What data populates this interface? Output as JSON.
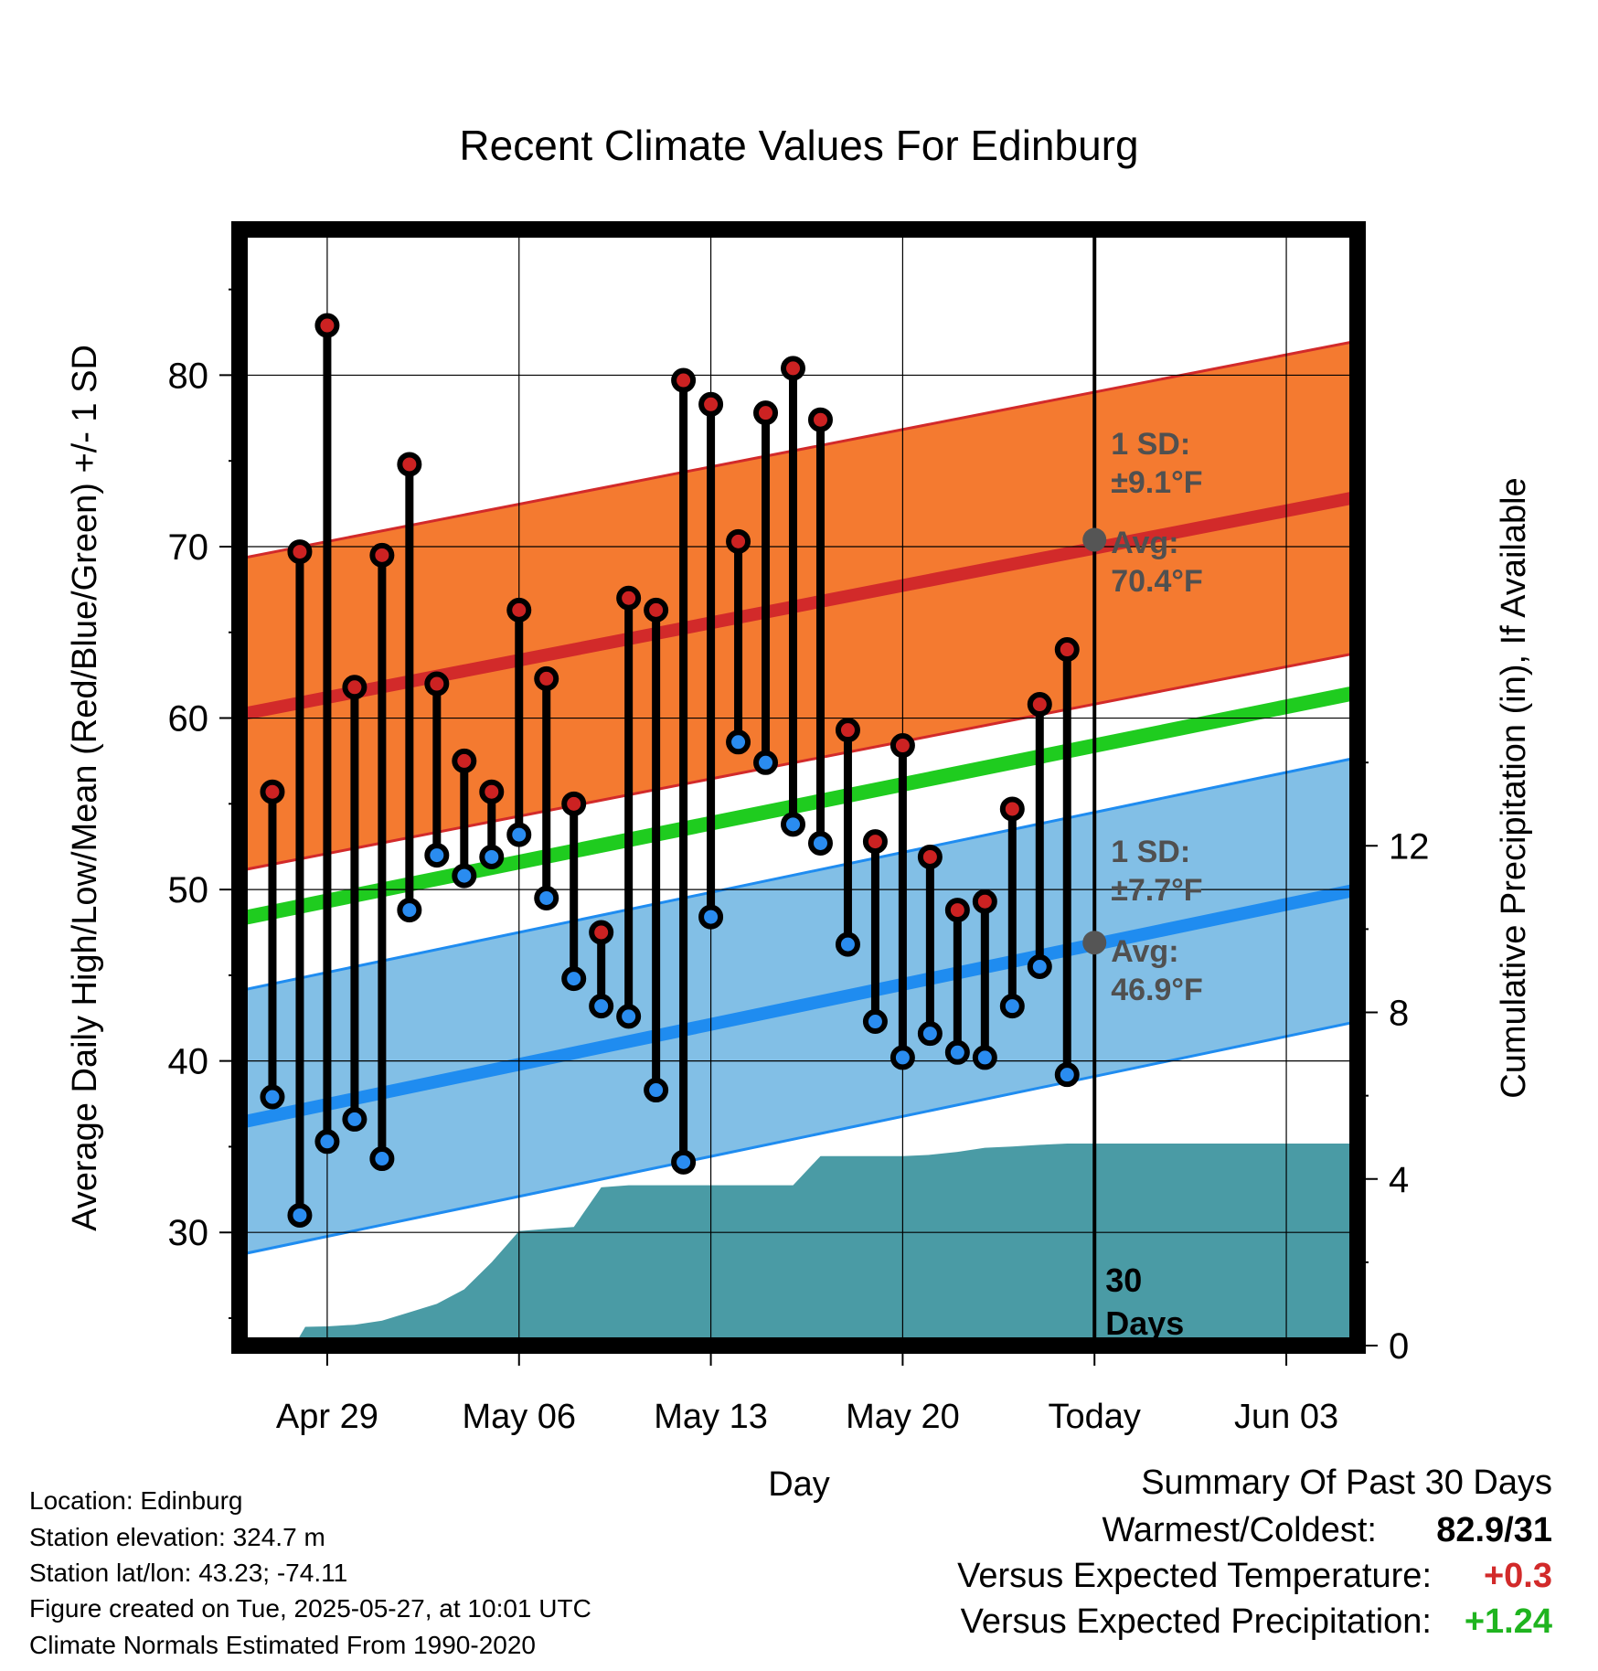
{
  "chart_data": {
    "type": "line",
    "title": "Recent Climate Values For Edinburg",
    "xlabel": "Day",
    "ylabel_left": "Average Daily High/Low/Mean (Red/Blue/Green) +/- 1 SD",
    "ylabel_right": "Cumulative Precipitation (in), If Available",
    "x_tick_labels": [
      "Apr 29",
      "May 06",
      "May 13",
      "May 20",
      "Today",
      "Jun 03"
    ],
    "x_tick_days": [
      -28,
      -21,
      -14,
      -7,
      0,
      7
    ],
    "xlim_days": [
      -31.2,
      9.6
    ],
    "ylim_left": [
      23.4,
      88.5
    ],
    "ylim_right": [
      0,
      26.8
    ],
    "y_left_ticks": [
      30,
      40,
      50,
      60,
      70,
      80
    ],
    "y_right_ticks": [
      0,
      4,
      8,
      12
    ],
    "grid": true,
    "today_marker": {
      "day": 0,
      "label_line1": "30",
      "label_line2": "Days"
    },
    "normals": {
      "high": {
        "avg_start": 60.2,
        "avg_end": 72.9,
        "sd": 9.1
      },
      "low": {
        "avg_start": 36.4,
        "avg_end": 50.0,
        "sd": 7.7
      },
      "mean": {
        "start": 48.3,
        "end": 61.5
      }
    },
    "annotations": {
      "high_sd": {
        "line1": "1 SD:",
        "line2": "±9.1°F"
      },
      "high_avg": {
        "line1": "Avg:",
        "line2": "70.4°F",
        "value": 70.4
      },
      "low_sd": {
        "line1": "1 SD:",
        "line2": "±7.7°F"
      },
      "low_avg": {
        "line1": "Avg:",
        "line2": "46.9°F",
        "value": 46.9
      }
    },
    "daily": {
      "day": [
        -30,
        -29,
        -28,
        -27,
        -26,
        -25,
        -24,
        -23,
        -22,
        -21,
        -20,
        -19,
        -18,
        -17,
        -16,
        -15,
        -14,
        -13,
        -12,
        -11,
        -10,
        -9,
        -8,
        -7,
        -6,
        -5,
        -4,
        -3,
        -2,
        -1
      ],
      "high": [
        55.7,
        69.7,
        82.9,
        61.8,
        69.5,
        74.8,
        62.0,
        57.5,
        55.7,
        66.3,
        62.3,
        55.0,
        47.5,
        67.0,
        66.3,
        79.7,
        78.3,
        70.3,
        77.8,
        80.4,
        77.4,
        59.3,
        52.8,
        58.4,
        51.9,
        48.8,
        49.3,
        54.7,
        60.8,
        64.0
      ],
      "low": [
        37.9,
        31.0,
        35.3,
        36.6,
        34.3,
        48.8,
        52.0,
        50.8,
        51.9,
        53.2,
        49.5,
        44.8,
        43.2,
        42.6,
        38.3,
        34.1,
        48.4,
        58.6,
        57.4,
        53.8,
        52.7,
        46.8,
        42.3,
        40.2,
        41.6,
        40.5,
        40.2,
        43.2,
        45.5,
        39.2
      ]
    },
    "precip": {
      "day": [
        -29.2,
        -28.8,
        -28,
        -27,
        -26,
        -25,
        -24,
        -23,
        -22,
        -21,
        -20,
        -19,
        -18,
        -17,
        -16,
        -15,
        -14,
        -13,
        -12,
        -11,
        -10,
        -9,
        -8,
        -7,
        -6,
        -5,
        -4,
        -3,
        -2,
        -1,
        0,
        9.6
      ],
      "cumulative": [
        0,
        0.45,
        0.46,
        0.5,
        0.6,
        0.8,
        1.0,
        1.35,
        2.0,
        2.75,
        2.8,
        2.85,
        3.8,
        3.85,
        3.85,
        3.85,
        3.85,
        3.85,
        3.85,
        3.85,
        4.55,
        4.55,
        4.55,
        4.55,
        4.58,
        4.65,
        4.75,
        4.78,
        4.82,
        4.85,
        4.85,
        4.85
      ]
    }
  },
  "footer": {
    "location": "Location: Edinburg",
    "elevation": "Station elevation: 324.7 m",
    "latlon": "Station lat/lon: 43.23; -74.11",
    "created": "Figure created on Tue, 2025-05-27, at 10:01 UTC",
    "normals": "Climate Normals Estimated From 1990-2020"
  },
  "summary": {
    "title": "Summary Of Past 30 Days",
    "warmest_coldest_label": "Warmest/Coldest:",
    "warmest_coldest_value": "82.9/31",
    "temp_label": "Versus Expected Temperature:",
    "temp_value": "+0.3",
    "precip_label": "Versus Expected Precipitation:",
    "precip_value": "+1.24"
  },
  "colors": {
    "high_band": "#f47a30",
    "high_line": "#d22a2a",
    "low_band": "#82bfe6",
    "low_line": "#1f8cf0",
    "mean_line": "#1fcc1f",
    "precip_fill": "#4a9ba5",
    "high_marker": "#cc2222",
    "low_marker": "#2a8cf0",
    "avg_marker": "#555555",
    "annotation_text": "#505050",
    "warm_value": "#d22a2a",
    "wet_value": "#1fb41f"
  }
}
